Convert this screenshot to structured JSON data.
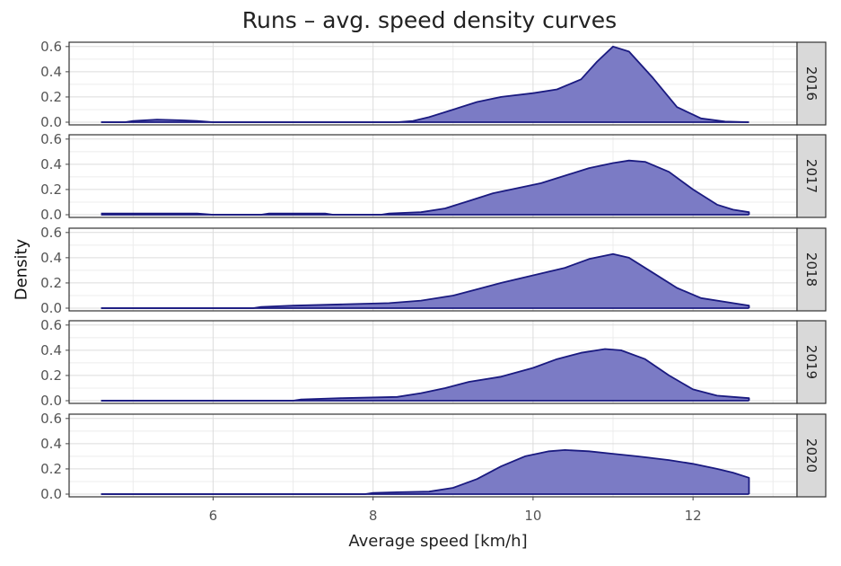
{
  "chart_data": {
    "type": "area",
    "title": "Runs – avg. speed density curves",
    "xlabel": "Average speed [km/h]",
    "ylabel": "Density",
    "xlim": [
      4.2,
      13.3
    ],
    "ylim": [
      0,
      0.62
    ],
    "x_ticks": [
      6,
      8,
      10,
      12
    ],
    "y_ticks": [
      0.0,
      0.2,
      0.4,
      0.6
    ],
    "y_tick_labels": [
      "0.0",
      "0.2",
      "0.4",
      "0.6"
    ],
    "grid": true,
    "fill_color": "#7b7bc5",
    "line_color": "#1a1a80",
    "strip_color": "#d9d9d9",
    "panels": [
      {
        "label": "2016",
        "points": [
          [
            4.6,
            0
          ],
          [
            4.9,
            0
          ],
          [
            5.0,
            0.01
          ],
          [
            5.3,
            0.02
          ],
          [
            5.6,
            0.015
          ],
          [
            5.8,
            0.01
          ],
          [
            6.0,
            0
          ],
          [
            8.3,
            0
          ],
          [
            8.5,
            0.01
          ],
          [
            8.7,
            0.04
          ],
          [
            9.0,
            0.1
          ],
          [
            9.3,
            0.16
          ],
          [
            9.6,
            0.2
          ],
          [
            10.0,
            0.23
          ],
          [
            10.3,
            0.26
          ],
          [
            10.6,
            0.34
          ],
          [
            10.8,
            0.48
          ],
          [
            11.0,
            0.6
          ],
          [
            11.2,
            0.56
          ],
          [
            11.5,
            0.35
          ],
          [
            11.8,
            0.12
          ],
          [
            12.1,
            0.03
          ],
          [
            12.4,
            0.005
          ],
          [
            12.7,
            0
          ]
        ]
      },
      {
        "label": "2017",
        "points": [
          [
            4.6,
            0.01
          ],
          [
            5.8,
            0.01
          ],
          [
            6.0,
            0
          ],
          [
            6.6,
            0
          ],
          [
            6.7,
            0.01
          ],
          [
            7.4,
            0.01
          ],
          [
            7.5,
            0
          ],
          [
            8.1,
            0
          ],
          [
            8.2,
            0.01
          ],
          [
            8.6,
            0.02
          ],
          [
            8.9,
            0.05
          ],
          [
            9.2,
            0.11
          ],
          [
            9.5,
            0.17
          ],
          [
            9.8,
            0.21
          ],
          [
            10.1,
            0.25
          ],
          [
            10.4,
            0.31
          ],
          [
            10.7,
            0.37
          ],
          [
            11.0,
            0.41
          ],
          [
            11.2,
            0.43
          ],
          [
            11.4,
            0.42
          ],
          [
            11.7,
            0.34
          ],
          [
            12.0,
            0.2
          ],
          [
            12.3,
            0.08
          ],
          [
            12.5,
            0.04
          ],
          [
            12.7,
            0.02
          ],
          [
            12.7,
            0
          ]
        ]
      },
      {
        "label": "2018",
        "points": [
          [
            4.6,
            0
          ],
          [
            6.5,
            0
          ],
          [
            6.6,
            0.01
          ],
          [
            7.0,
            0.02
          ],
          [
            7.6,
            0.03
          ],
          [
            8.2,
            0.04
          ],
          [
            8.6,
            0.06
          ],
          [
            9.0,
            0.1
          ],
          [
            9.3,
            0.15
          ],
          [
            9.6,
            0.2
          ],
          [
            10.0,
            0.26
          ],
          [
            10.4,
            0.32
          ],
          [
            10.7,
            0.39
          ],
          [
            11.0,
            0.43
          ],
          [
            11.2,
            0.4
          ],
          [
            11.5,
            0.28
          ],
          [
            11.8,
            0.16
          ],
          [
            12.1,
            0.08
          ],
          [
            12.5,
            0.04
          ],
          [
            12.7,
            0.02
          ],
          [
            12.7,
            0
          ]
        ]
      },
      {
        "label": "2019",
        "points": [
          [
            4.6,
            0
          ],
          [
            7.0,
            0
          ],
          [
            7.1,
            0.01
          ],
          [
            7.6,
            0.02
          ],
          [
            8.3,
            0.03
          ],
          [
            8.6,
            0.06
          ],
          [
            8.9,
            0.1
          ],
          [
            9.2,
            0.15
          ],
          [
            9.6,
            0.19
          ],
          [
            10.0,
            0.26
          ],
          [
            10.3,
            0.33
          ],
          [
            10.6,
            0.38
          ],
          [
            10.9,
            0.41
          ],
          [
            11.1,
            0.4
          ],
          [
            11.4,
            0.33
          ],
          [
            11.7,
            0.2
          ],
          [
            12.0,
            0.09
          ],
          [
            12.3,
            0.04
          ],
          [
            12.5,
            0.03
          ],
          [
            12.7,
            0.02
          ],
          [
            12.7,
            0
          ]
        ]
      },
      {
        "label": "2020",
        "points": [
          [
            4.6,
            0
          ],
          [
            7.9,
            0
          ],
          [
            8.0,
            0.01
          ],
          [
            8.3,
            0.015
          ],
          [
            8.7,
            0.02
          ],
          [
            9.0,
            0.05
          ],
          [
            9.3,
            0.12
          ],
          [
            9.6,
            0.22
          ],
          [
            9.9,
            0.3
          ],
          [
            10.2,
            0.34
          ],
          [
            10.4,
            0.35
          ],
          [
            10.7,
            0.34
          ],
          [
            11.0,
            0.32
          ],
          [
            11.3,
            0.3
          ],
          [
            11.7,
            0.27
          ],
          [
            12.0,
            0.24
          ],
          [
            12.3,
            0.2
          ],
          [
            12.5,
            0.17
          ],
          [
            12.7,
            0.13
          ],
          [
            12.7,
            0
          ]
        ]
      }
    ]
  }
}
